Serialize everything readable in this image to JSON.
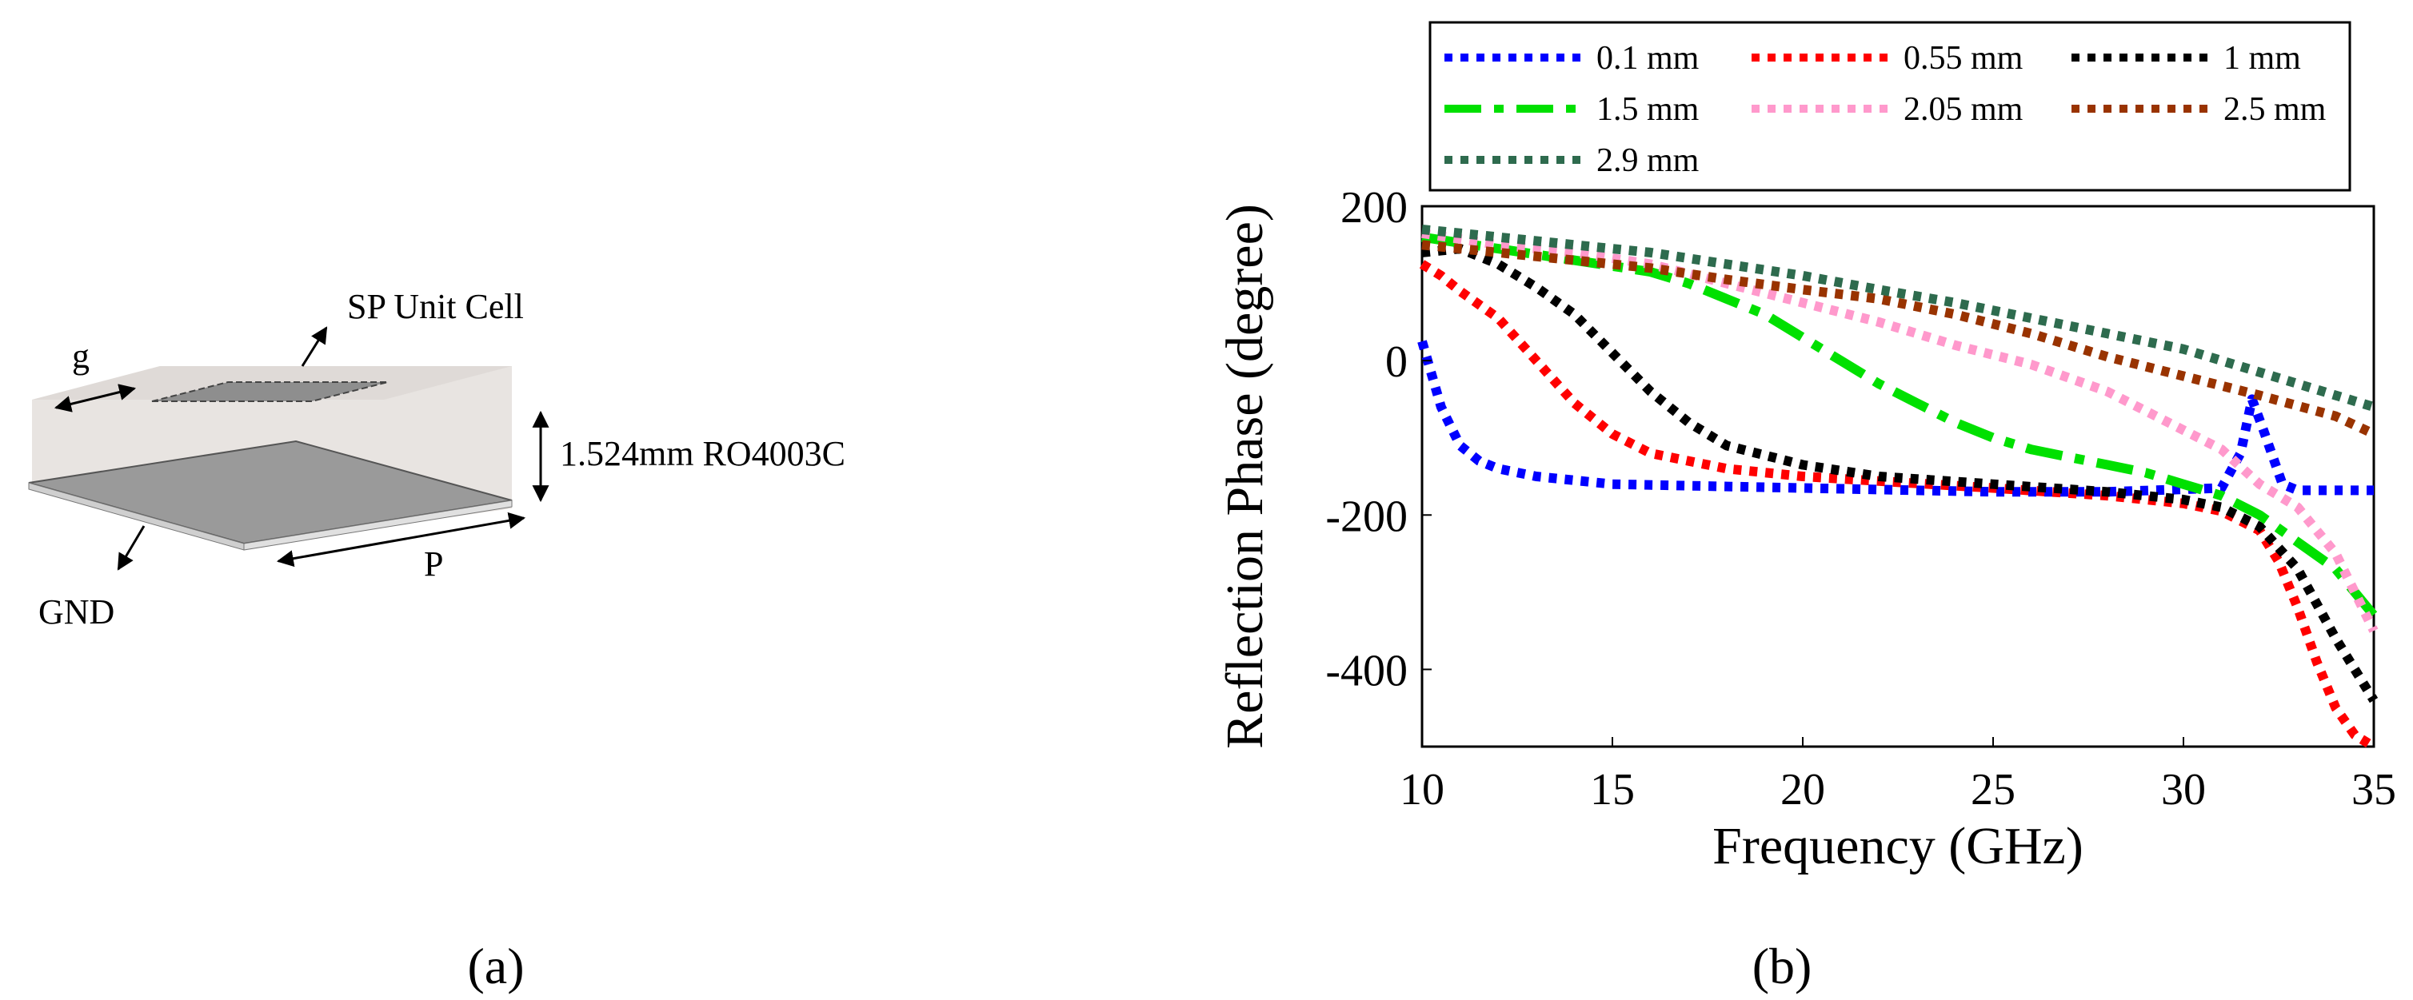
{
  "figure_a": {
    "caption": "(a)",
    "label_unit_cell": "SP Unit Cell",
    "label_gap": "g",
    "label_substrate": "1.524mm RO4003C",
    "label_gnd": "GND",
    "label_period": "P"
  },
  "figure_b": {
    "caption": "(b)"
  },
  "chart_data": {
    "type": "line",
    "title": "",
    "xlabel": "Frequency (GHz)",
    "ylabel": "Reflection Phase (degree)",
    "xlim": [
      10,
      35
    ],
    "ylim": [
      -500,
      200
    ],
    "xticks": [
      10,
      15,
      20,
      25,
      30,
      35
    ],
    "yticks": [
      200,
      0,
      -200,
      -400
    ],
    "grid": false,
    "legend_position": "top",
    "series": [
      {
        "name": "0.1 mm",
        "color": "#0000ff",
        "style": "dotted",
        "x": [
          10,
          10.5,
          11,
          11.5,
          12,
          13,
          15,
          20,
          25,
          28,
          31,
          31.5,
          31.8,
          32.1,
          32.6,
          33,
          35
        ],
        "y": [
          25,
          -60,
          -110,
          -130,
          -140,
          -150,
          -160,
          -165,
          -170,
          -170,
          -165,
          -120,
          -50,
          -90,
          -160,
          -168,
          -168
        ]
      },
      {
        "name": "0.55 mm",
        "color": "#ff0000",
        "style": "dotted",
        "x": [
          10,
          10.5,
          11,
          12,
          13,
          14,
          15,
          16,
          18,
          20,
          25,
          28,
          30,
          31,
          32,
          32.5,
          33,
          33.5,
          34,
          34.5,
          35
        ],
        "y": [
          125,
          110,
          90,
          55,
          0,
          -55,
          -95,
          -120,
          -140,
          -150,
          -165,
          -175,
          -185,
          -195,
          -220,
          -260,
          -320,
          -390,
          -450,
          -485,
          -500
        ]
      },
      {
        "name": "1 mm",
        "color": "#000000",
        "style": "dotted",
        "x": [
          10,
          11,
          12,
          13,
          14,
          15,
          16,
          17,
          18,
          20,
          22,
          25,
          28,
          30,
          31,
          32,
          33,
          34,
          35
        ],
        "y": [
          140,
          145,
          125,
          95,
          60,
          10,
          -40,
          -80,
          -110,
          -135,
          -150,
          -160,
          -170,
          -180,
          -190,
          -215,
          -270,
          -360,
          -440
        ]
      },
      {
        "name": "1.5 mm",
        "color": "#00e000",
        "style": "longdash",
        "x": [
          10,
          12,
          14,
          16,
          17,
          18,
          19,
          20,
          21,
          22,
          23,
          24,
          25,
          26,
          27,
          28,
          29,
          30,
          31,
          32,
          33,
          34,
          35
        ],
        "y": [
          160,
          145,
          130,
          115,
          100,
          80,
          60,
          30,
          0,
          -30,
          -55,
          -80,
          -100,
          -115,
          -125,
          -135,
          -145,
          -160,
          -175,
          -200,
          -235,
          -270,
          -330
        ]
      },
      {
        "name": "2.05 mm",
        "color": "#ff99cc",
        "style": "dotted",
        "x": [
          10,
          12,
          14,
          16,
          18,
          20,
          22,
          24,
          26,
          28,
          29,
          30,
          31,
          32,
          33,
          34,
          35
        ],
        "y": [
          165,
          150,
          140,
          125,
          100,
          75,
          50,
          20,
          -5,
          -40,
          -65,
          -90,
          -115,
          -160,
          -190,
          -250,
          -350
        ]
      },
      {
        "name": "2.5 mm",
        "color": "#993300",
        "style": "dotted",
        "x": [
          10,
          12,
          14,
          16,
          18,
          20,
          22,
          24,
          26,
          28,
          30,
          32,
          34,
          35
        ],
        "y": [
          150,
          140,
          130,
          120,
          105,
          92,
          80,
          60,
          35,
          5,
          -20,
          -45,
          -72,
          -95
        ]
      },
      {
        "name": "2.9 mm",
        "color": "#2e6b4e",
        "style": "dotted",
        "x": [
          10,
          12,
          14,
          16,
          18,
          20,
          22,
          24,
          26,
          28,
          30,
          32,
          34,
          35
        ],
        "y": [
          170,
          160,
          150,
          140,
          125,
          110,
          92,
          75,
          55,
          35,
          15,
          -15,
          -45,
          -60
        ]
      }
    ]
  }
}
